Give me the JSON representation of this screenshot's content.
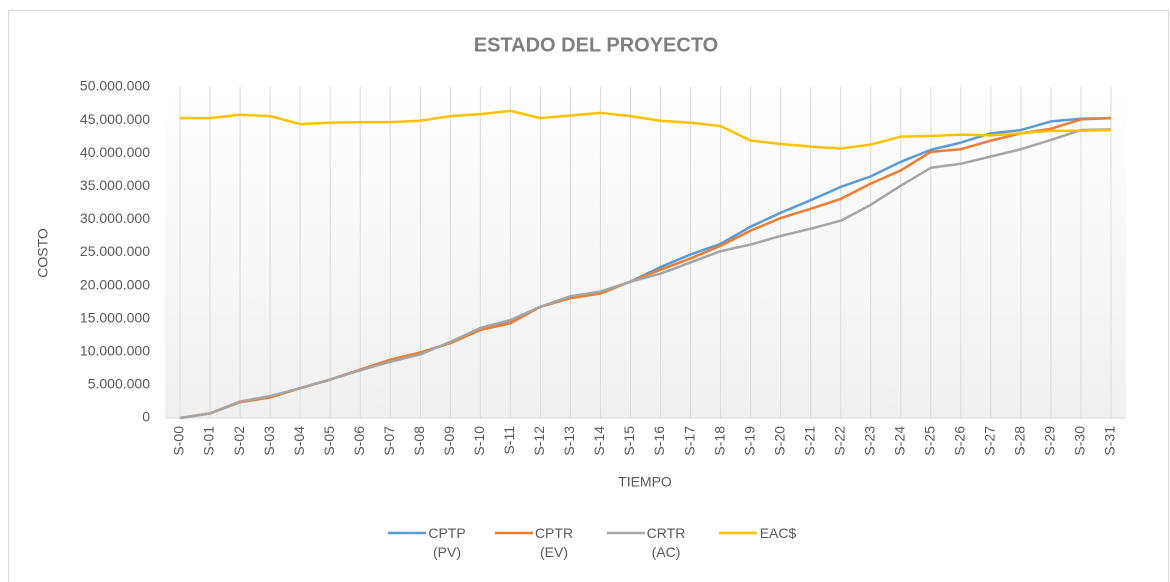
{
  "chart_data": {
    "type": "line",
    "title": "ESTADO DEL PROYECTO",
    "x_label": "TIEMPO",
    "y_label": "COSTO",
    "categories": [
      "S-00",
      "S-01",
      "S-02",
      "S-03",
      "S-04",
      "S-05",
      "S-06",
      "S-07",
      "S-08",
      "S-09",
      "S-10",
      "S-11",
      "S-12",
      "S-13",
      "S-14",
      "S-15",
      "S-16",
      "S-17",
      "S-18",
      "S-19",
      "S-20",
      "S-21",
      "S-22",
      "S-23",
      "S-24",
      "S-25",
      "S-26",
      "S-27",
      "S-28",
      "S-29",
      "S-30",
      "S-31"
    ],
    "series": [
      {
        "name": "CPTP (PV)",
        "color": "#5b9bd5",
        "values": [
          0,
          700000,
          2400000,
          3200000,
          4500000,
          5800000,
          7300000,
          8700000,
          9800000,
          11400000,
          13500000,
          14700000,
          16800000,
          18300000,
          19000000,
          20600000,
          22800000,
          24700000,
          26300000,
          28900000,
          31000000,
          32900000,
          34900000,
          36500000,
          38700000,
          40500000,
          41600000,
          43000000,
          43500000,
          44800000,
          45200000,
          45300000
        ]
      },
      {
        "name": "CPTR (EV)",
        "color": "#ed7d31",
        "values": [
          0,
          700000,
          2400000,
          3100000,
          4500000,
          5800000,
          7300000,
          8800000,
          9900000,
          11300000,
          13300000,
          14300000,
          16800000,
          18100000,
          18800000,
          20600000,
          22400000,
          24100000,
          26000000,
          28300000,
          30200000,
          31600000,
          33100000,
          35400000,
          37400000,
          40200000,
          40600000,
          41900000,
          43000000,
          43700000,
          45100000,
          45300000
        ]
      },
      {
        "name": "CRTR (AC)",
        "color": "#a5a5a5",
        "values": [
          0,
          700000,
          2500000,
          3300000,
          4500000,
          5800000,
          7200000,
          8500000,
          9600000,
          11500000,
          13600000,
          14800000,
          16800000,
          18400000,
          19100000,
          20600000,
          21800000,
          23500000,
          25200000,
          26200000,
          27500000,
          28600000,
          29800000,
          32200000,
          35100000,
          37800000,
          38400000,
          39500000,
          40600000,
          42000000,
          43500000,
          43600000
        ]
      },
      {
        "name": "EAC$",
        "color": "#ffc000",
        "values": [
          45300000,
          45300000,
          45800000,
          45600000,
          44400000,
          44600000,
          44700000,
          44700000,
          44900000,
          45600000,
          45900000,
          46400000,
          45300000,
          45700000,
          46100000,
          45600000,
          44900000,
          44600000,
          44100000,
          41900000,
          41400000,
          41000000,
          40700000,
          41300000,
          42500000,
          42600000,
          42800000,
          42700000,
          43000000,
          43400000,
          43400000,
          43500000
        ]
      }
    ],
    "ylim": [
      0,
      50000000
    ],
    "yticks": [
      0,
      {
        "value": 5000000,
        "label": "5.000.000"
      },
      {
        "value": 10000000,
        "label": "10.000.000"
      },
      {
        "value": 15000000,
        "label": "15.000.000"
      },
      {
        "value": 20000000,
        "label": "20.000.000"
      },
      {
        "value": 25000000,
        "label": "25.000.000"
      },
      {
        "value": 30000000,
        "label": "30.000.000"
      },
      {
        "value": 35000000,
        "label": "35.000.000"
      },
      {
        "value": 40000000,
        "label": "40.000.000"
      },
      {
        "value": 45000000,
        "label": "45.000.000"
      },
      {
        "value": 50000000,
        "label": "50.000.000"
      }
    ],
    "grid": "x",
    "legend": "bottom"
  }
}
